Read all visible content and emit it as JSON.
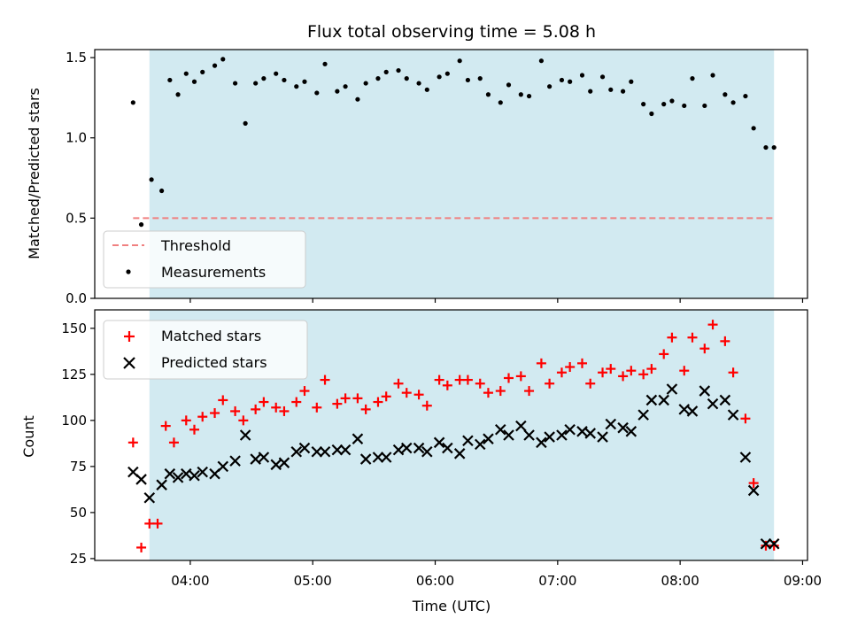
{
  "chart_data": [
    {
      "type": "scatter",
      "title": "Flux total observing time = 5.08 h",
      "ylabel": "Matched/Predicted stars",
      "xlabel": "",
      "ylim": [
        0,
        1.55
      ],
      "xlim_hours": [
        3.22,
        9.04
      ],
      "yticks": [
        "0.0",
        "0.5",
        "1.0",
        "1.5"
      ],
      "ytick_values": [
        0,
        0.5,
        1.0,
        1.5
      ],
      "grid": false,
      "legend_position": "lower-left",
      "shaded_span": {
        "start": "03:40",
        "end": "08:46",
        "color": "#add8e6"
      },
      "threshold": {
        "name": "Threshold",
        "value": 0.5,
        "start": "03:32",
        "end": "08:46",
        "color": "#f08080"
      },
      "series": [
        {
          "name": "Measurements",
          "marker": "dot",
          "color": "#000000",
          "x": [
            "03:32",
            "03:36",
            "03:41",
            "03:46",
            "03:50",
            "03:54",
            "03:58",
            "04:02",
            "04:06",
            "04:12",
            "04:16",
            "04:22",
            "04:27",
            "04:32",
            "04:36",
            "04:42",
            "04:46",
            "04:52",
            "04:56",
            "05:02",
            "05:06",
            "05:12",
            "05:16",
            "05:22",
            "05:26",
            "05:32",
            "05:36",
            "05:42",
            "05:46",
            "05:52",
            "05:56",
            "06:02",
            "06:06",
            "06:12",
            "06:16",
            "06:22",
            "06:26",
            "06:32",
            "06:36",
            "06:42",
            "06:46",
            "06:52",
            "06:56",
            "07:02",
            "07:06",
            "07:12",
            "07:16",
            "07:22",
            "07:26",
            "07:32",
            "07:36",
            "07:42",
            "07:46",
            "07:52",
            "07:56",
            "08:02",
            "08:06",
            "08:12",
            "08:16",
            "08:22",
            "08:26",
            "08:32",
            "08:36",
            "08:42",
            "08:46"
          ],
          "y": [
            1.22,
            0.46,
            0.74,
            0.67,
            1.36,
            1.27,
            1.4,
            1.35,
            1.41,
            1.45,
            1.49,
            1.34,
            1.09,
            1.34,
            1.37,
            1.4,
            1.36,
            1.32,
            1.35,
            1.28,
            1.46,
            1.29,
            1.32,
            1.24,
            1.34,
            1.37,
            1.41,
            1.42,
            1.37,
            1.34,
            1.3,
            1.38,
            1.4,
            1.48,
            1.36,
            1.37,
            1.27,
            1.22,
            1.33,
            1.27,
            1.26,
            1.48,
            1.32,
            1.36,
            1.35,
            1.39,
            1.29,
            1.38,
            1.3,
            1.29,
            1.35,
            1.21,
            1.15,
            1.21,
            1.23,
            1.2,
            1.37,
            1.2,
            1.39,
            1.27,
            1.22,
            1.26,
            1.06,
            0.94,
            0.94
          ]
        }
      ]
    },
    {
      "type": "scatter",
      "title": "",
      "ylabel": "Count",
      "xlabel": "Time (UTC)",
      "ylim": [
        24,
        160
      ],
      "xlim_hours": [
        3.22,
        9.04
      ],
      "yticks": [
        "25",
        "50",
        "75",
        "100",
        "125",
        "150"
      ],
      "ytick_values": [
        25,
        50,
        75,
        100,
        125,
        150
      ],
      "xticks": [
        "04:00",
        "05:00",
        "06:00",
        "07:00",
        "08:00",
        "09:00"
      ],
      "xtick_hours": [
        4,
        5,
        6,
        7,
        8,
        9
      ],
      "grid": false,
      "legend_position": "upper-left",
      "shaded_span": {
        "start": "03:40",
        "end": "08:46",
        "color": "#add8e6"
      },
      "series": [
        {
          "name": "Matched stars",
          "marker": "plus",
          "color": "#ff0000",
          "x": [
            "03:32",
            "03:36",
            "03:40",
            "03:44",
            "03:48",
            "03:52",
            "03:58",
            "04:02",
            "04:06",
            "04:12",
            "04:16",
            "04:22",
            "04:26",
            "04:32",
            "04:36",
            "04:42",
            "04:46",
            "04:52",
            "04:56",
            "05:02",
            "05:06",
            "05:12",
            "05:16",
            "05:22",
            "05:26",
            "05:32",
            "05:36",
            "05:42",
            "05:46",
            "05:52",
            "05:56",
            "06:02",
            "06:06",
            "06:12",
            "06:16",
            "06:22",
            "06:26",
            "06:32",
            "06:36",
            "06:42",
            "06:46",
            "06:52",
            "06:56",
            "07:02",
            "07:06",
            "07:12",
            "07:16",
            "07:22",
            "07:26",
            "07:32",
            "07:36",
            "07:42",
            "07:46",
            "07:52",
            "07:56",
            "08:02",
            "08:06",
            "08:12",
            "08:16",
            "08:22",
            "08:26",
            "08:32",
            "08:36",
            "08:42",
            "08:46"
          ],
          "y": [
            88,
            31,
            44,
            44,
            97,
            88,
            100,
            95,
            102,
            104,
            111,
            105,
            100,
            106,
            110,
            107,
            105,
            110,
            116,
            107,
            122,
            109,
            112,
            112,
            106,
            110,
            113,
            120,
            115,
            114,
            108,
            122,
            119,
            122,
            122,
            120,
            115,
            116,
            123,
            124,
            116,
            131,
            120,
            126,
            129,
            131,
            120,
            126,
            128,
            124,
            127,
            125,
            128,
            136,
            145,
            127,
            145,
            139,
            152,
            143,
            126,
            101,
            66,
            32,
            32
          ]
        },
        {
          "name": "Predicted stars",
          "marker": "x",
          "color": "#000000",
          "x": [
            "03:32",
            "03:36",
            "03:40",
            "03:46",
            "03:50",
            "03:54",
            "03:58",
            "04:02",
            "04:06",
            "04:12",
            "04:16",
            "04:22",
            "04:27",
            "04:32",
            "04:36",
            "04:42",
            "04:46",
            "04:52",
            "04:56",
            "05:02",
            "05:06",
            "05:12",
            "05:16",
            "05:22",
            "05:26",
            "05:32",
            "05:36",
            "05:42",
            "05:46",
            "05:52",
            "05:56",
            "06:02",
            "06:06",
            "06:12",
            "06:16",
            "06:22",
            "06:26",
            "06:32",
            "06:36",
            "06:42",
            "06:46",
            "06:52",
            "06:56",
            "07:02",
            "07:06",
            "07:12",
            "07:16",
            "07:22",
            "07:26",
            "07:32",
            "07:36",
            "07:42",
            "07:46",
            "07:52",
            "07:56",
            "08:02",
            "08:06",
            "08:12",
            "08:16",
            "08:22",
            "08:26",
            "08:32",
            "08:36",
            "08:42",
            "08:46"
          ],
          "y": [
            72,
            68,
            58,
            65,
            71,
            69,
            71,
            70,
            72,
            71,
            75,
            78,
            92,
            79,
            80,
            76,
            77,
            83,
            85,
            83,
            83,
            84,
            84,
            90,
            79,
            80,
            80,
            84,
            85,
            85,
            83,
            88,
            85,
            82,
            89,
            87,
            90,
            95,
            92,
            97,
            92,
            88,
            91,
            92,
            95,
            94,
            93,
            91,
            98,
            96,
            94,
            103,
            111,
            111,
            117,
            106,
            105,
            116,
            109,
            111,
            103,
            80,
            62,
            33,
            33
          ]
        }
      ]
    }
  ]
}
